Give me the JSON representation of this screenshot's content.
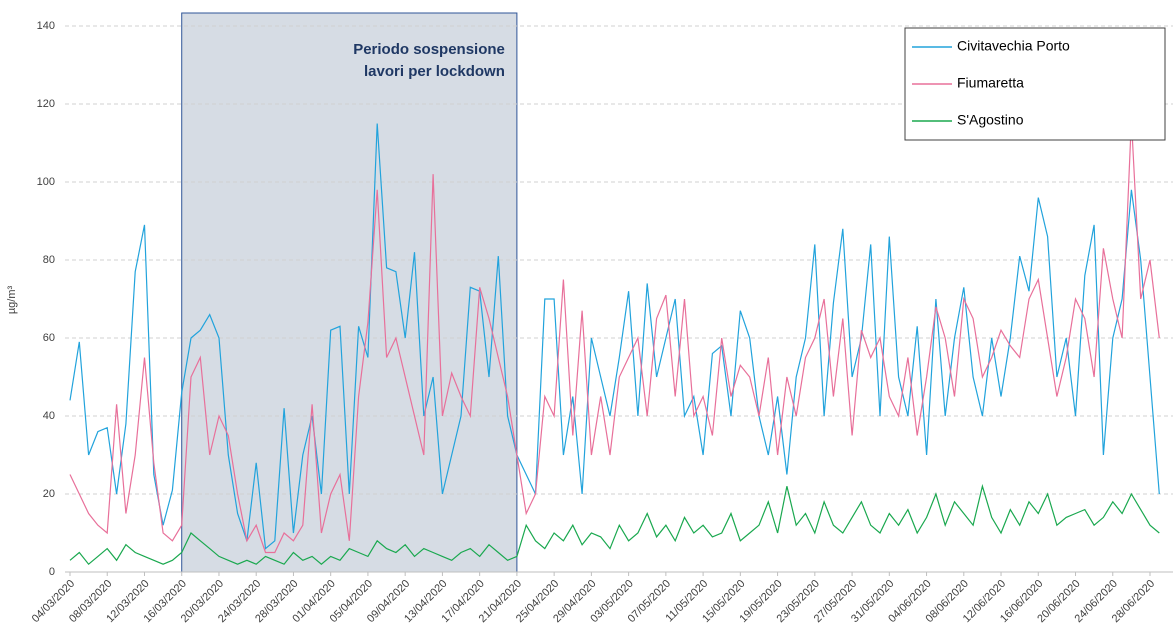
{
  "chart_data": {
    "type": "line",
    "y_label": "µg/m³",
    "categories": [
      "04/03/2020",
      null,
      null,
      null,
      "08/03/2020",
      null,
      null,
      null,
      "12/03/2020",
      null,
      null,
      null,
      "16/03/2020",
      null,
      null,
      null,
      "20/03/2020",
      null,
      null,
      null,
      "24/03/2020",
      null,
      null,
      null,
      "28/03/2020",
      null,
      null,
      null,
      "01/04/2020",
      null,
      null,
      null,
      "05/04/2020",
      null,
      null,
      null,
      "09/04/2020",
      null,
      null,
      null,
      "13/04/2020",
      null,
      null,
      null,
      "17/04/2020",
      null,
      null,
      null,
      "21/04/2020",
      null,
      null,
      null,
      "25/04/2020",
      null,
      null,
      null,
      "29/04/2020",
      null,
      null,
      null,
      "03/05/2020",
      null,
      null,
      null,
      "07/05/2020",
      null,
      null,
      null,
      "11/05/2020",
      null,
      null,
      null,
      "15/05/2020",
      null,
      null,
      null,
      "19/05/2020",
      null,
      null,
      null,
      "23/05/2020",
      null,
      null,
      null,
      "27/05/2020",
      null,
      null,
      null,
      "31/05/2020",
      null,
      null,
      null,
      "04/06/2020",
      null,
      null,
      null,
      "08/06/2020",
      null,
      null,
      null,
      "12/06/2020",
      null,
      null,
      null,
      "16/06/2020",
      null,
      null,
      null,
      "20/06/2020",
      null,
      null,
      null,
      "24/06/2020",
      null,
      null,
      null,
      "28/06/2020",
      null
    ],
    "series": [
      {
        "name": "Civitavechia Porto",
        "color": "#22a3dc",
        "values": [
          44,
          59,
          30,
          36,
          37,
          20,
          38,
          77,
          89,
          25,
          12,
          21,
          46,
          60,
          62,
          66,
          60,
          30,
          15,
          8,
          28,
          6,
          8,
          42,
          10,
          30,
          40,
          20,
          62,
          63,
          20,
          63,
          55,
          115,
          78,
          77,
          60,
          82,
          40,
          50,
          20,
          30,
          40,
          73,
          72,
          50,
          81,
          40,
          30,
          25,
          20,
          70,
          70,
          30,
          45,
          20,
          60,
          50,
          40,
          55,
          72,
          40,
          74,
          50,
          60,
          70,
          40,
          45,
          30,
          56,
          58,
          40,
          67,
          60,
          40,
          30,
          45,
          25,
          50,
          60,
          84,
          40,
          69,
          88,
          50,
          60,
          84,
          40,
          86,
          50,
          40,
          63,
          30,
          70,
          40,
          60,
          73,
          50,
          40,
          60,
          45,
          60,
          81,
          72,
          96,
          86,
          50,
          60,
          40,
          76,
          89,
          30,
          60,
          70,
          98,
          80,
          50,
          20
        ]
      },
      {
        "name": "Fiumaretta",
        "color": "#e8709a",
        "values": [
          25,
          20,
          15,
          12,
          10,
          43,
          15,
          30,
          55,
          28,
          10,
          8,
          12,
          50,
          55,
          30,
          40,
          35,
          20,
          8,
          12,
          5,
          5,
          10,
          8,
          12,
          43,
          10,
          20,
          25,
          8,
          45,
          64,
          98,
          55,
          60,
          50,
          40,
          30,
          102,
          40,
          51,
          45,
          40,
          73,
          65,
          55,
          45,
          30,
          15,
          20,
          45,
          40,
          75,
          35,
          67,
          30,
          45,
          30,
          50,
          55,
          60,
          40,
          65,
          71,
          45,
          70,
          40,
          45,
          35,
          60,
          45,
          53,
          50,
          40,
          55,
          30,
          50,
          40,
          55,
          60,
          70,
          45,
          65,
          35,
          62,
          55,
          60,
          45,
          40,
          55,
          35,
          50,
          68,
          60,
          45,
          70,
          65,
          50,
          55,
          62,
          58,
          55,
          70,
          75,
          60,
          45,
          55,
          70,
          65,
          50,
          83,
          70,
          60,
          116,
          70,
          80,
          60
        ]
      },
      {
        "name": "S'Agostino",
        "color": "#1aa84f",
        "values": [
          3,
          5,
          2,
          4,
          6,
          3,
          7,
          5,
          4,
          3,
          2,
          3,
          5,
          10,
          8,
          6,
          4,
          3,
          2,
          3,
          2,
          4,
          3,
          2,
          5,
          3,
          4,
          2,
          4,
          3,
          6,
          5,
          4,
          8,
          6,
          5,
          7,
          4,
          6,
          5,
          4,
          3,
          5,
          6,
          4,
          7,
          5,
          3,
          4,
          12,
          8,
          6,
          10,
          8,
          12,
          7,
          10,
          9,
          6,
          12,
          8,
          10,
          15,
          9,
          12,
          8,
          14,
          10,
          12,
          9,
          10,
          15,
          8,
          10,
          12,
          18,
          10,
          22,
          12,
          15,
          10,
          18,
          12,
          10,
          14,
          18,
          12,
          10,
          15,
          12,
          16,
          10,
          14,
          20,
          12,
          18,
          15,
          12,
          22,
          14,
          10,
          16,
          12,
          18,
          15,
          20,
          12,
          14,
          15,
          16,
          12,
          14,
          18,
          15,
          20,
          16,
          12,
          10
        ]
      }
    ],
    "ylim": [
      0,
      140
    ],
    "yticks": [
      0,
      20,
      40,
      60,
      80,
      100,
      120,
      140
    ],
    "grid": true,
    "shaded_region": {
      "start": 12,
      "end": 48,
      "color": "#d6dce4",
      "label": [
        "Periodo sospensione",
        "lavori per lockdown"
      ]
    },
    "legend": "top-right"
  }
}
